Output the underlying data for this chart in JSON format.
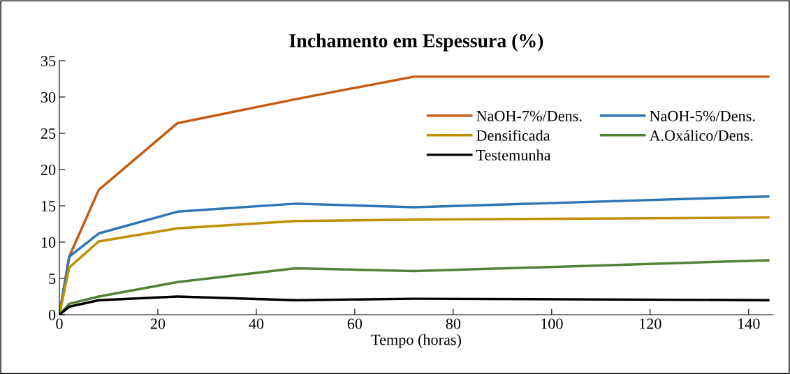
{
  "chart_data": {
    "type": "line",
    "title": "Inchamento em Espessura (%)",
    "xlabel": "Tempo (horas)",
    "x": [
      0,
      2,
      8,
      24,
      48,
      72,
      144
    ],
    "series": [
      {
        "name": "NaOH-7%/Dens.",
        "color": "#c55a11",
        "values": [
          0,
          8.0,
          17.2,
          26.4,
          29.7,
          32.8,
          32.8
        ]
      },
      {
        "name": "NaOH-5%/Dens.",
        "color": "#2e75b6",
        "values": [
          0,
          8.0,
          11.2,
          14.2,
          15.3,
          14.8,
          16.3
        ]
      },
      {
        "name": "Densificada",
        "color": "#bf9000",
        "values": [
          0,
          6.5,
          10.1,
          11.9,
          12.9,
          13.1,
          13.4
        ]
      },
      {
        "name": "A.Oxálico/Dens.",
        "color": "#538135",
        "values": [
          0,
          1.5,
          2.5,
          4.5,
          6.4,
          6.0,
          7.5
        ]
      },
      {
        "name": "Testemunha",
        "color": "#000000",
        "values": [
          0,
          1.1,
          2.0,
          2.5,
          2.0,
          2.2,
          2.0
        ]
      }
    ],
    "xlim": [
      0,
      145
    ],
    "ylim": [
      0,
      35
    ],
    "xticks": [
      0,
      20,
      40,
      60,
      80,
      100,
      120,
      140
    ],
    "yticks": [
      0,
      5,
      10,
      15,
      20,
      25,
      30,
      35
    ],
    "grid": false,
    "legend": "top right",
    "marker": "none",
    "line_style": "solid"
  }
}
